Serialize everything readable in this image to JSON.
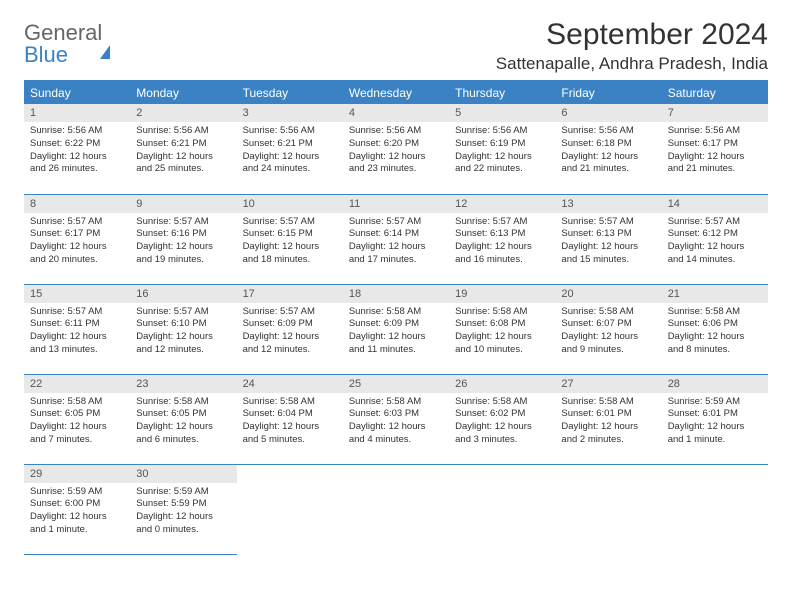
{
  "brand": {
    "general": "General",
    "blue": "Blue"
  },
  "title": "September 2024",
  "location": "Sattenapalle, Andhra Pradesh, India",
  "weekdays": [
    "Sunday",
    "Monday",
    "Tuesday",
    "Wednesday",
    "Thursday",
    "Friday",
    "Saturday"
  ],
  "colors": {
    "accent": "#3b82c4",
    "header_text": "#ffffff",
    "daynum_bg": "#e8e8e8",
    "text": "#333333",
    "background": "#ffffff"
  },
  "days": [
    {
      "n": "1",
      "sunrise": "Sunrise: 5:56 AM",
      "sunset": "Sunset: 6:22 PM",
      "day1": "Daylight: 12 hours",
      "day2": "and 26 minutes."
    },
    {
      "n": "2",
      "sunrise": "Sunrise: 5:56 AM",
      "sunset": "Sunset: 6:21 PM",
      "day1": "Daylight: 12 hours",
      "day2": "and 25 minutes."
    },
    {
      "n": "3",
      "sunrise": "Sunrise: 5:56 AM",
      "sunset": "Sunset: 6:21 PM",
      "day1": "Daylight: 12 hours",
      "day2": "and 24 minutes."
    },
    {
      "n": "4",
      "sunrise": "Sunrise: 5:56 AM",
      "sunset": "Sunset: 6:20 PM",
      "day1": "Daylight: 12 hours",
      "day2": "and 23 minutes."
    },
    {
      "n": "5",
      "sunrise": "Sunrise: 5:56 AM",
      "sunset": "Sunset: 6:19 PM",
      "day1": "Daylight: 12 hours",
      "day2": "and 22 minutes."
    },
    {
      "n": "6",
      "sunrise": "Sunrise: 5:56 AM",
      "sunset": "Sunset: 6:18 PM",
      "day1": "Daylight: 12 hours",
      "day2": "and 21 minutes."
    },
    {
      "n": "7",
      "sunrise": "Sunrise: 5:56 AM",
      "sunset": "Sunset: 6:17 PM",
      "day1": "Daylight: 12 hours",
      "day2": "and 21 minutes."
    },
    {
      "n": "8",
      "sunrise": "Sunrise: 5:57 AM",
      "sunset": "Sunset: 6:17 PM",
      "day1": "Daylight: 12 hours",
      "day2": "and 20 minutes."
    },
    {
      "n": "9",
      "sunrise": "Sunrise: 5:57 AM",
      "sunset": "Sunset: 6:16 PM",
      "day1": "Daylight: 12 hours",
      "day2": "and 19 minutes."
    },
    {
      "n": "10",
      "sunrise": "Sunrise: 5:57 AM",
      "sunset": "Sunset: 6:15 PM",
      "day1": "Daylight: 12 hours",
      "day2": "and 18 minutes."
    },
    {
      "n": "11",
      "sunrise": "Sunrise: 5:57 AM",
      "sunset": "Sunset: 6:14 PM",
      "day1": "Daylight: 12 hours",
      "day2": "and 17 minutes."
    },
    {
      "n": "12",
      "sunrise": "Sunrise: 5:57 AM",
      "sunset": "Sunset: 6:13 PM",
      "day1": "Daylight: 12 hours",
      "day2": "and 16 minutes."
    },
    {
      "n": "13",
      "sunrise": "Sunrise: 5:57 AM",
      "sunset": "Sunset: 6:13 PM",
      "day1": "Daylight: 12 hours",
      "day2": "and 15 minutes."
    },
    {
      "n": "14",
      "sunrise": "Sunrise: 5:57 AM",
      "sunset": "Sunset: 6:12 PM",
      "day1": "Daylight: 12 hours",
      "day2": "and 14 minutes."
    },
    {
      "n": "15",
      "sunrise": "Sunrise: 5:57 AM",
      "sunset": "Sunset: 6:11 PM",
      "day1": "Daylight: 12 hours",
      "day2": "and 13 minutes."
    },
    {
      "n": "16",
      "sunrise": "Sunrise: 5:57 AM",
      "sunset": "Sunset: 6:10 PM",
      "day1": "Daylight: 12 hours",
      "day2": "and 12 minutes."
    },
    {
      "n": "17",
      "sunrise": "Sunrise: 5:57 AM",
      "sunset": "Sunset: 6:09 PM",
      "day1": "Daylight: 12 hours",
      "day2": "and 12 minutes."
    },
    {
      "n": "18",
      "sunrise": "Sunrise: 5:58 AM",
      "sunset": "Sunset: 6:09 PM",
      "day1": "Daylight: 12 hours",
      "day2": "and 11 minutes."
    },
    {
      "n": "19",
      "sunrise": "Sunrise: 5:58 AM",
      "sunset": "Sunset: 6:08 PM",
      "day1": "Daylight: 12 hours",
      "day2": "and 10 minutes."
    },
    {
      "n": "20",
      "sunrise": "Sunrise: 5:58 AM",
      "sunset": "Sunset: 6:07 PM",
      "day1": "Daylight: 12 hours",
      "day2": "and 9 minutes."
    },
    {
      "n": "21",
      "sunrise": "Sunrise: 5:58 AM",
      "sunset": "Sunset: 6:06 PM",
      "day1": "Daylight: 12 hours",
      "day2": "and 8 minutes."
    },
    {
      "n": "22",
      "sunrise": "Sunrise: 5:58 AM",
      "sunset": "Sunset: 6:05 PM",
      "day1": "Daylight: 12 hours",
      "day2": "and 7 minutes."
    },
    {
      "n": "23",
      "sunrise": "Sunrise: 5:58 AM",
      "sunset": "Sunset: 6:05 PM",
      "day1": "Daylight: 12 hours",
      "day2": "and 6 minutes."
    },
    {
      "n": "24",
      "sunrise": "Sunrise: 5:58 AM",
      "sunset": "Sunset: 6:04 PM",
      "day1": "Daylight: 12 hours",
      "day2": "and 5 minutes."
    },
    {
      "n": "25",
      "sunrise": "Sunrise: 5:58 AM",
      "sunset": "Sunset: 6:03 PM",
      "day1": "Daylight: 12 hours",
      "day2": "and 4 minutes."
    },
    {
      "n": "26",
      "sunrise": "Sunrise: 5:58 AM",
      "sunset": "Sunset: 6:02 PM",
      "day1": "Daylight: 12 hours",
      "day2": "and 3 minutes."
    },
    {
      "n": "27",
      "sunrise": "Sunrise: 5:58 AM",
      "sunset": "Sunset: 6:01 PM",
      "day1": "Daylight: 12 hours",
      "day2": "and 2 minutes."
    },
    {
      "n": "28",
      "sunrise": "Sunrise: 5:59 AM",
      "sunset": "Sunset: 6:01 PM",
      "day1": "Daylight: 12 hours",
      "day2": "and 1 minute."
    },
    {
      "n": "29",
      "sunrise": "Sunrise: 5:59 AM",
      "sunset": "Sunset: 6:00 PM",
      "day1": "Daylight: 12 hours",
      "day2": "and 1 minute."
    },
    {
      "n": "30",
      "sunrise": "Sunrise: 5:59 AM",
      "sunset": "Sunset: 5:59 PM",
      "day1": "Daylight: 12 hours",
      "day2": "and 0 minutes."
    }
  ]
}
